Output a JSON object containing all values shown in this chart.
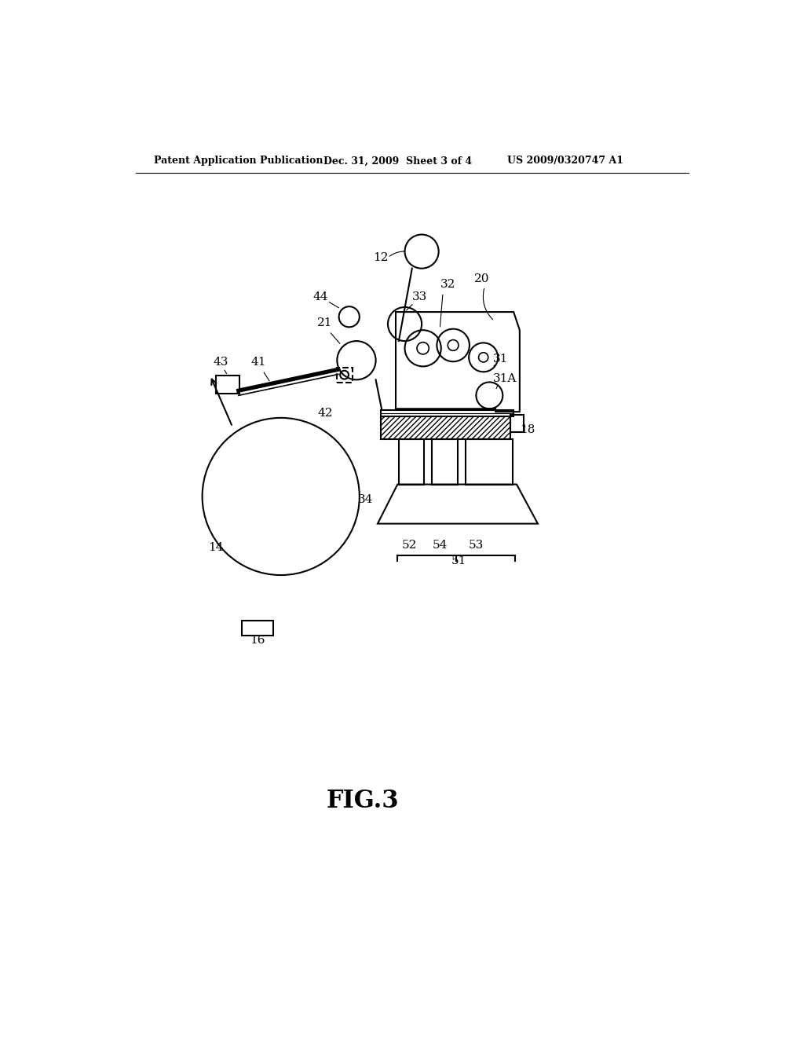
{
  "background_color": "#ffffff",
  "header_left": "Patent Application Publication",
  "header_mid": "Dec. 31, 2009  Sheet 3 of 4",
  "header_right": "US 2009/0320747 A1",
  "figure_label": "FIG.3"
}
